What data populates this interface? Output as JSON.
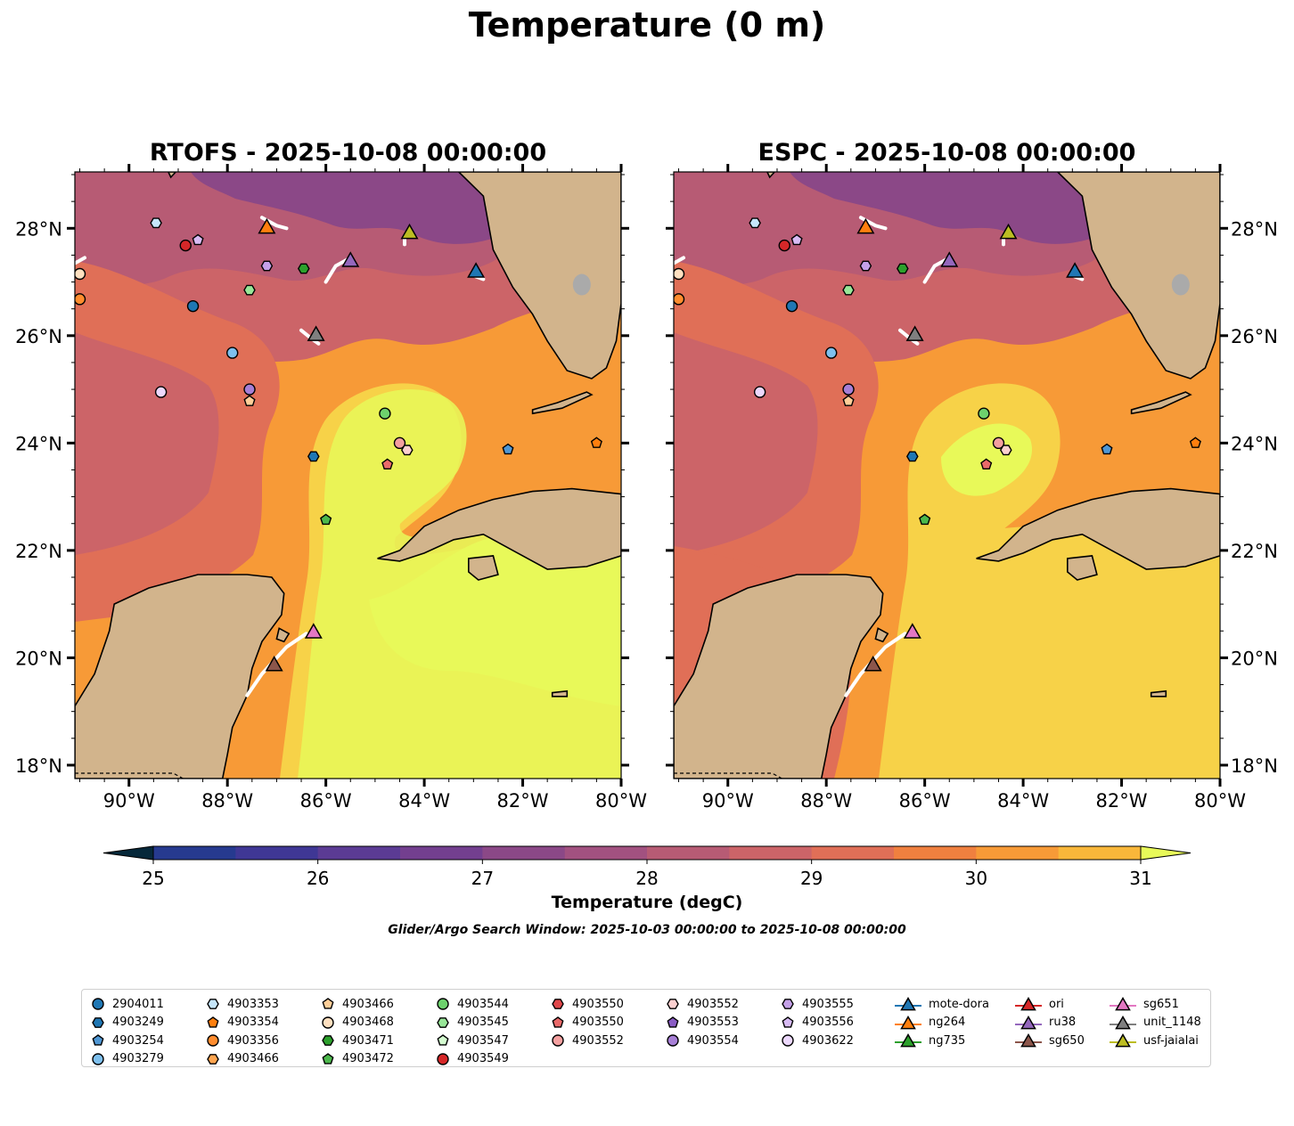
{
  "title": "Temperature (0 m)",
  "panels": [
    {
      "id": "rtofs",
      "title": "RTOFS - 2025-10-08 00:00:00"
    },
    {
      "id": "espc",
      "title": "ESPC - 2025-10-08 00:00:00"
    }
  ],
  "axes": {
    "lon_ticks": [
      "90°W",
      "88°W",
      "86°W",
      "84°W",
      "82°W",
      "80°W"
    ],
    "lat_ticks": [
      "28°N",
      "26°N",
      "24°N",
      "22°N",
      "20°N",
      "18°N"
    ],
    "lon_range": [
      -91.1,
      -80.0
    ],
    "lat_range": [
      17.75,
      29.05
    ]
  },
  "colorbar": {
    "label": "Temperature (degC)",
    "ticks": [
      "25",
      "26",
      "27",
      "28",
      "29",
      "30",
      "31"
    ],
    "colors": [
      "#06283a",
      "#13306e",
      "#263a8f",
      "#3f3795",
      "#5b3b94",
      "#733f8f",
      "#8b4887",
      "#a25180",
      "#b75b74",
      "#cc6468",
      "#e06f57",
      "#f0803f",
      "#f79a37",
      "#f9b73a",
      "#f7d248",
      "#e8f959"
    ]
  },
  "search_window": "Glider/Argo Search Window: 2025-10-03 00:00:00 to 2025-10-08 00:00:00",
  "land_color": "#d2b48c",
  "legend": [
    [
      {
        "label": "2904011",
        "marker": "circle",
        "color": "#1f77b4"
      },
      {
        "label": "4903249",
        "marker": "hexagon",
        "color": "#1f77b4"
      },
      {
        "label": "4903254",
        "marker": "pentagon",
        "color": "#4f97d4"
      },
      {
        "label": "4903279",
        "marker": "circle",
        "color": "#7ec0ee"
      }
    ],
    [
      {
        "label": "4903353",
        "marker": "hexagon",
        "color": "#c6e6fb"
      },
      {
        "label": "4903354",
        "marker": "pentagon",
        "color": "#ff7f0e"
      },
      {
        "label": "4903356",
        "marker": "circle",
        "color": "#ff8c2e"
      },
      {
        "label": "4903466",
        "marker": "hexagon",
        "color": "#ffa54f"
      }
    ],
    [
      {
        "label": "4903466",
        "marker": "pentagon",
        "color": "#ffcf99"
      },
      {
        "label": "4903468",
        "marker": "circle",
        "color": "#ffe0c0"
      },
      {
        "label": "4903471",
        "marker": "hexagon",
        "color": "#2ca02c"
      },
      {
        "label": "4903472",
        "marker": "pentagon",
        "color": "#4cb84c"
      }
    ],
    [
      {
        "label": "4903544",
        "marker": "circle",
        "color": "#6dd16d"
      },
      {
        "label": "4903545",
        "marker": "hexagon",
        "color": "#98e698"
      },
      {
        "label": "4903547",
        "marker": "pentagon",
        "color": "#d4fcd0"
      },
      {
        "label": "4903549",
        "marker": "circle",
        "color": "#d62728"
      }
    ],
    [
      {
        "label": "4903550",
        "marker": "hexagon",
        "color": "#e0474a"
      },
      {
        "label": "4903550",
        "marker": "pentagon",
        "color": "#ea6a6a"
      },
      {
        "label": "4903552",
        "marker": "circle",
        "color": "#f4a0a0"
      }
    ],
    [
      {
        "label": "4903552",
        "marker": "hexagon",
        "color": "#fcd0d0"
      },
      {
        "label": "4903553",
        "marker": "pentagon",
        "color": "#8a5cc4"
      },
      {
        "label": "4903554",
        "marker": "circle",
        "color": "#a77fd6"
      }
    ],
    [
      {
        "label": "4903555",
        "marker": "hexagon",
        "color": "#c4a0e8"
      },
      {
        "label": "4903556",
        "marker": "pentagon",
        "color": "#d8bbf4"
      },
      {
        "label": "4903622",
        "marker": "circle",
        "color": "#ecd8fc"
      }
    ],
    [
      {
        "label": "mote-dora",
        "marker": "triangle-line",
        "color": "#1f77b4"
      },
      {
        "label": "ng264",
        "marker": "triangle-line",
        "color": "#ff7f0e"
      },
      {
        "label": "ng735",
        "marker": "triangle-line",
        "color": "#2ca02c"
      }
    ],
    [
      {
        "label": "ori",
        "marker": "triangle-line",
        "color": "#d62728"
      },
      {
        "label": "ru38",
        "marker": "triangle-line",
        "color": "#9467bd"
      },
      {
        "label": "sg650",
        "marker": "triangle-line",
        "color": "#8c564b"
      }
    ],
    [
      {
        "label": "sg651",
        "marker": "triangle-line",
        "color": "#e377c2"
      },
      {
        "label": "unit_1148",
        "marker": "triangle-line",
        "color": "#7f7f7f"
      },
      {
        "label": "usf-jaialai",
        "marker": "triangle-line",
        "color": "#bcbd22"
      }
    ]
  ],
  "argo_floats": [
    {
      "id": "2904011",
      "lon": -88.7,
      "lat": 26.55
    },
    {
      "id": "4903249",
      "lon": -86.25,
      "lat": 23.75
    },
    {
      "id": "4903254",
      "lon": -82.3,
      "lat": 23.88
    },
    {
      "id": "4903279",
      "lon": -87.9,
      "lat": 25.68
    },
    {
      "id": "4903353",
      "lon": -89.45,
      "lat": 28.1
    },
    {
      "id": "4903354",
      "lon": -80.5,
      "lat": 24.0
    },
    {
      "id": "4903356",
      "lon": -91.0,
      "lat": 26.68
    },
    {
      "id": "4903466",
      "lon": -87.55,
      "lat": 24.78
    },
    {
      "id": "4903468",
      "lon": -91.0,
      "lat": 27.15
    },
    {
      "id": "4903471",
      "lon": -86.45,
      "lat": 27.25
    },
    {
      "id": "4903472",
      "lon": -86.0,
      "lat": 22.57
    },
    {
      "id": "4903544",
      "lon": -84.8,
      "lat": 24.55
    },
    {
      "id": "4903545",
      "lon": -87.55,
      "lat": 26.85
    },
    {
      "id": "4903549",
      "lon": -88.85,
      "lat": 27.68
    },
    {
      "id": "4903550",
      "lon": -84.75,
      "lat": 23.6
    },
    {
      "id": "4903552",
      "lon": -84.5,
      "lat": 24.0
    },
    {
      "id": "4903552",
      "lon": -84.35,
      "lat": 23.87
    },
    {
      "id": "4903554",
      "lon": -87.55,
      "lat": 25.0
    },
    {
      "id": "4903555",
      "lon": -87.2,
      "lat": 27.3
    },
    {
      "id": "4903556",
      "lon": -88.6,
      "lat": 27.78
    },
    {
      "id": "4903622",
      "lon": -89.35,
      "lat": 24.95
    }
  ],
  "gliders": [
    {
      "id": "ng264",
      "lon": -87.2,
      "lat": 28.02
    },
    {
      "id": "usf-jaialai",
      "lon": -84.3,
      "lat": 27.92
    },
    {
      "id": "ru38",
      "lon": -85.5,
      "lat": 27.4
    },
    {
      "id": "mote-dora",
      "lon": -82.95,
      "lat": 27.2
    },
    {
      "id": "unit_1148",
      "lon": -86.2,
      "lat": 26.02
    },
    {
      "id": "sg651",
      "lon": -86.25,
      "lat": 20.48
    },
    {
      "id": "sg650",
      "lon": -87.05,
      "lat": 19.87
    }
  ]
}
